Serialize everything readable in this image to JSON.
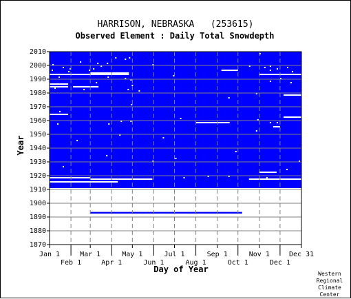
{
  "title": "HARRISON, NEBRASKA   (253615)",
  "subtitle": "Observed Element : Daily Total Snowdepth",
  "credit": [
    "Western",
    "Regional",
    "Climate",
    "Center"
  ],
  "colors": {
    "data": "#0000ff",
    "no_data": "#ffffff",
    "grid": "#808080",
    "gap_band": "#ffffff"
  },
  "chart_data": {
    "type": "heatmap",
    "title": "HARRISON, NEBRASKA   (253615)",
    "subtitle": "Observed Element : Daily Total Snowdepth",
    "xlabel": "Day of Year",
    "ylabel": "Year",
    "xlim": [
      1,
      366
    ],
    "ylim": [
      1870,
      2010
    ],
    "y_ticks": [
      1870,
      1880,
      1890,
      1900,
      1910,
      1920,
      1930,
      1940,
      1950,
      1960,
      1970,
      1980,
      1990,
      2000,
      2010
    ],
    "x_ticks_top_row": [
      {
        "label": "Jan 1",
        "day": 1
      },
      {
        "label": "Mar 1",
        "day": 60
      },
      {
        "label": "May 1",
        "day": 121
      },
      {
        "label": "Jul 1",
        "day": 182
      },
      {
        "label": "Sep 1",
        "day": 244
      },
      {
        "label": "Nov 1",
        "day": 305
      },
      {
        "label": "Dec 31",
        "day": 366
      }
    ],
    "x_ticks_bottom_row": [
      {
        "label": "Feb 1",
        "day": 32
      },
      {
        "label": "Apr 1",
        "day": 91
      },
      {
        "label": "Jun 1",
        "day": 152
      },
      {
        "label": "Aug 1",
        "day": 213
      },
      {
        "label": "Oct 1",
        "day": 274
      },
      {
        "label": "Dec 1",
        "day": 335
      }
    ],
    "grid": true,
    "data_block": {
      "year_start": 1911,
      "year_end": 2009,
      "day_start": 1,
      "day_end": 366
    },
    "isolated_periods": [
      {
        "year": 1893,
        "day_start": 60,
        "day_end": 280
      }
    ],
    "missing_periods": [
      {
        "year": 1994,
        "day_start": 60,
        "day_end": 116
      },
      {
        "year": 1993,
        "day_start": 1,
        "day_end": 116
      },
      {
        "year": 1986,
        "day_start": 1,
        "day_end": 28
      },
      {
        "year": 1984,
        "day_start": 1,
        "day_end": 28
      },
      {
        "year": 1984,
        "day_start": 35,
        "day_end": 72
      },
      {
        "year": 1996,
        "day_start": 250,
        "day_end": 274
      },
      {
        "year": 1993,
        "day_start": 305,
        "day_end": 366
      },
      {
        "year": 1978,
        "day_start": 340,
        "day_end": 366
      },
      {
        "year": 1964,
        "day_start": 1,
        "day_end": 28
      },
      {
        "year": 1962,
        "day_start": 340,
        "day_end": 366
      },
      {
        "year": 1958,
        "day_start": 213,
        "day_end": 262
      },
      {
        "year": 1955,
        "day_start": 325,
        "day_end": 335
      },
      {
        "year": 1922,
        "day_start": 305,
        "day_end": 330
      },
      {
        "year": 1918,
        "day_start": 1,
        "day_end": 60
      },
      {
        "year": 1917,
        "day_start": 60,
        "day_end": 150
      },
      {
        "year": 1917,
        "day_start": 290,
        "day_end": 366
      },
      {
        "year": 1915,
        "day_start": 1,
        "day_end": 100
      }
    ],
    "missing_days": [
      {
        "year": 2008,
        "day": 305
      },
      {
        "year": 2005,
        "day": 96
      },
      {
        "year": 2005,
        "day": 116
      },
      {
        "year": 2004,
        "day": 110
      },
      {
        "year": 2002,
        "day": 45
      },
      {
        "year": 2001,
        "day": 70
      },
      {
        "year": 2001,
        "day": 84
      },
      {
        "year": 2000,
        "day": 5
      },
      {
        "year": 2000,
        "day": 150
      },
      {
        "year": 1999,
        "day": 75
      },
      {
        "year": 1999,
        "day": 290
      },
      {
        "year": 1999,
        "day": 320
      },
      {
        "year": 1998,
        "day": 20
      },
      {
        "year": 1998,
        "day": 312
      },
      {
        "year": 1998,
        "day": 345
      },
      {
        "year": 1997,
        "day": 30
      },
      {
        "year": 1997,
        "day": 64
      },
      {
        "year": 1997,
        "day": 330
      },
      {
        "year": 1996,
        "day": 4
      },
      {
        "year": 1996,
        "day": 58
      },
      {
        "year": 1996,
        "day": 320
      },
      {
        "year": 1995,
        "day": 28
      },
      {
        "year": 1995,
        "day": 352
      },
      {
        "year": 1992,
        "day": 180
      },
      {
        "year": 1991,
        "day": 14
      },
      {
        "year": 1991,
        "day": 85
      },
      {
        "year": 1990,
        "day": 110
      },
      {
        "year": 1990,
        "day": 335
      },
      {
        "year": 1989,
        "day": 118
      },
      {
        "year": 1988,
        "day": 320
      },
      {
        "year": 1987,
        "day": 68
      },
      {
        "year": 1987,
        "day": 350
      },
      {
        "year": 1985,
        "day": 120
      },
      {
        "year": 1983,
        "day": 8
      },
      {
        "year": 1982,
        "day": 50
      },
      {
        "year": 1982,
        "day": 114
      },
      {
        "year": 1981,
        "day": 130
      },
      {
        "year": 1979,
        "day": 300
      },
      {
        "year": 1976,
        "day": 260
      },
      {
        "year": 1971,
        "day": 119
      },
      {
        "year": 1966,
        "day": 15
      },
      {
        "year": 1961,
        "day": 190
      },
      {
        "year": 1960,
        "day": 302
      },
      {
        "year": 1959,
        "day": 104
      },
      {
        "year": 1959,
        "day": 118
      },
      {
        "year": 1958,
        "day": 320
      },
      {
        "year": 1958,
        "day": 330
      },
      {
        "year": 1957,
        "day": 86
      },
      {
        "year": 1957,
        "day": 12
      },
      {
        "year": 1952,
        "day": 300
      },
      {
        "year": 1949,
        "day": 102
      },
      {
        "year": 1947,
        "day": 165
      },
      {
        "year": 1945,
        "day": 40
      },
      {
        "year": 1937,
        "day": 270
      },
      {
        "year": 1934,
        "day": 83
      },
      {
        "year": 1932,
        "day": 183
      },
      {
        "year": 1930,
        "day": 150
      },
      {
        "year": 1930,
        "day": 362
      },
      {
        "year": 1926,
        "day": 20
      },
      {
        "year": 1924,
        "day": 344
      },
      {
        "year": 1919,
        "day": 230
      },
      {
        "year": 1919,
        "day": 260
      },
      {
        "year": 1918,
        "day": 195
      },
      {
        "year": 1918,
        "day": 315
      }
    ]
  }
}
